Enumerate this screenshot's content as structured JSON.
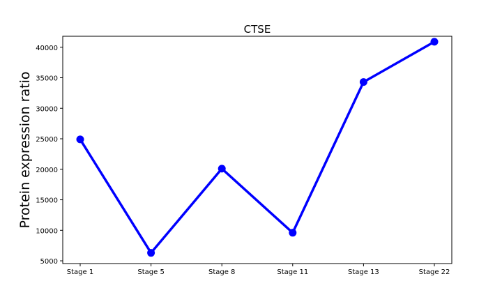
{
  "chart_data": {
    "type": "line",
    "title": "CTSE",
    "xlabel": "",
    "ylabel": "Protein expression ratio",
    "categories": [
      "Stage 1",
      "Stage 5",
      "Stage 8",
      "Stage 11",
      "Stage 13",
      "Stage 22"
    ],
    "series": [
      {
        "values": [
          24900,
          6300,
          20100,
          9600,
          34300,
          40900
        ]
      }
    ],
    "yticks": [
      5000,
      10000,
      15000,
      20000,
      25000,
      30000,
      35000,
      40000
    ],
    "ylim": [
      4550,
      41800
    ],
    "grid": false,
    "legend": "none",
    "colors": {
      "line": "#0000ff",
      "axes": "#000000",
      "background": "#ffffff"
    }
  }
}
